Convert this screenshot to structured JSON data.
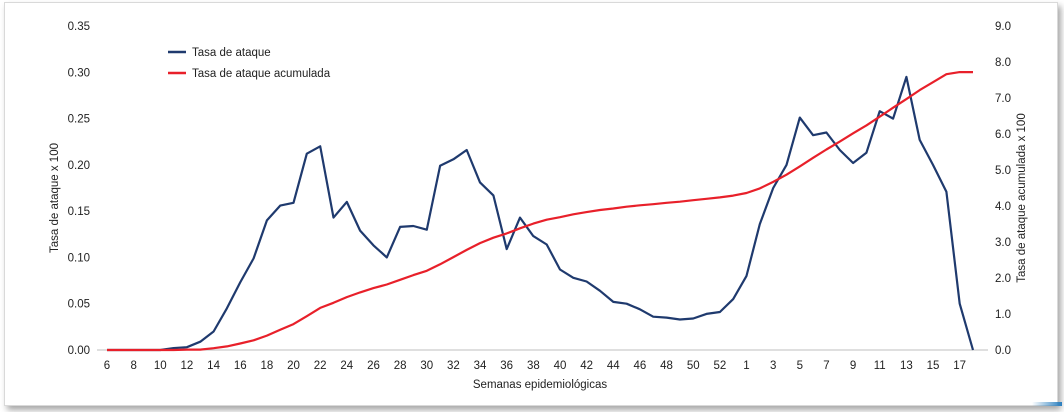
{
  "chart_data": {
    "type": "line",
    "xlabel": "Semanas epidemiológicas",
    "ylabel_left": "Tasa de ataque x 100",
    "ylabel_right": "Tasa de ataque acumulada x 100",
    "x_ticks": [
      "6",
      "8",
      "10",
      "12",
      "14",
      "16",
      "18",
      "20",
      "22",
      "24",
      "26",
      "28",
      "30",
      "32",
      "34",
      "36",
      "38",
      "40",
      "42",
      "44",
      "46",
      "48",
      "50",
      "52",
      "1",
      "3",
      "5",
      "7",
      "9",
      "11",
      "13",
      "15",
      "17"
    ],
    "y_left_ticks": [
      "0.00",
      "0.05",
      "0.10",
      "0.15",
      "0.20",
      "0.25",
      "0.30",
      "0.35"
    ],
    "y_right_ticks": [
      "0.0",
      "1.0",
      "2.0",
      "3.0",
      "4.0",
      "5.0",
      "6.0",
      "7.0",
      "8.0",
      "9.0"
    ],
    "ylim_left": [
      0,
      0.35
    ],
    "ylim_right": [
      0,
      9
    ],
    "legend_position": "top-left",
    "grid": false,
    "series": [
      {
        "name": "Tasa de ataque",
        "axis": "left",
        "color": "#1f3a6e",
        "values": [
          0.0,
          0.0,
          0.0,
          0.0,
          0.0,
          0.002,
          0.003,
          0.009,
          0.02,
          0.045,
          0.073,
          0.099,
          0.14,
          0.156,
          0.159,
          0.212,
          0.22,
          0.143,
          0.16,
          0.129,
          0.113,
          0.1,
          0.133,
          0.134,
          0.13,
          0.199,
          0.206,
          0.216,
          0.181,
          0.167,
          0.109,
          0.143,
          0.123,
          0.114,
          0.087,
          0.078,
          0.074,
          0.064,
          0.052,
          0.05,
          0.044,
          0.036,
          0.035,
          0.033,
          0.034,
          0.039,
          0.041,
          0.055,
          0.08,
          0.136,
          0.175,
          0.2,
          0.251,
          0.232,
          0.235,
          0.216,
          0.202,
          0.213,
          0.258,
          0.25,
          0.295,
          0.227,
          0.2,
          0.171,
          0.05,
          0.0
        ]
      },
      {
        "name": "Tasa de ataque acumulada",
        "axis": "right",
        "color": "#e8202a",
        "values": [
          0.0,
          0.0,
          0.0,
          0.0,
          0.0,
          0.0,
          0.01,
          0.01,
          0.05,
          0.1,
          0.18,
          0.27,
          0.4,
          0.56,
          0.72,
          0.94,
          1.17,
          1.31,
          1.47,
          1.6,
          1.72,
          1.82,
          1.95,
          2.08,
          2.2,
          2.38,
          2.58,
          2.78,
          2.97,
          3.12,
          3.24,
          3.38,
          3.51,
          3.62,
          3.69,
          3.77,
          3.83,
          3.89,
          3.93,
          3.98,
          4.02,
          4.05,
          4.09,
          4.12,
          4.16,
          4.2,
          4.24,
          4.29,
          4.36,
          4.49,
          4.67,
          4.87,
          5.1,
          5.34,
          5.57,
          5.79,
          6.02,
          6.24,
          6.48,
          6.73,
          6.97,
          7.22,
          7.44,
          7.66,
          7.72,
          7.72
        ]
      }
    ]
  }
}
